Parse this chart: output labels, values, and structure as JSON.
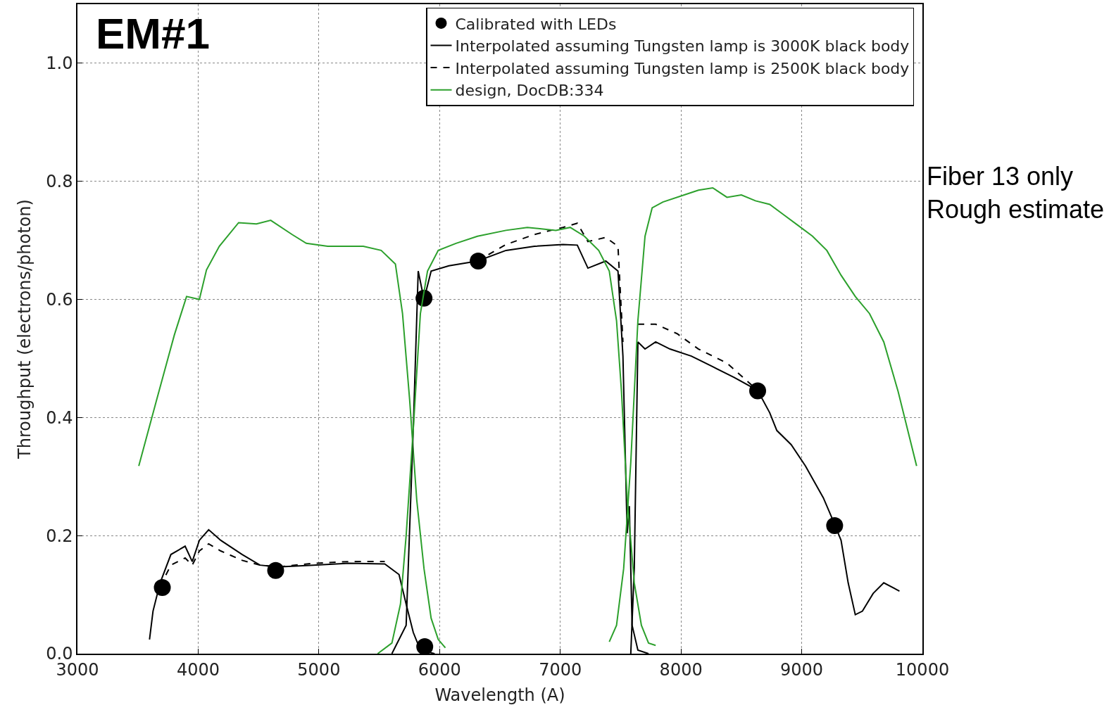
{
  "chart_data": {
    "type": "line",
    "xlabel": "Wavelength (A)",
    "ylabel": "Throughput (electrons/photon)",
    "xlim": [
      3000,
      10000
    ],
    "ylim": [
      0,
      1.1
    ],
    "xticks": [
      3000,
      4000,
      5000,
      6000,
      7000,
      8000,
      9000,
      10000
    ],
    "yticks": [
      {
        "value": 0,
        "label": "0.0"
      },
      {
        "value": 0.2,
        "label": "0.2"
      },
      {
        "value": 0.4,
        "label": "0.4"
      },
      {
        "value": 0.6,
        "label": "0.6"
      },
      {
        "value": 0.8,
        "label": "0.8"
      },
      {
        "value": 1.0,
        "label": "1.0"
      }
    ],
    "grid": true,
    "legend": "top right",
    "annotations": [
      "EM#1",
      "Fiber 13 only\nRough estimate"
    ],
    "series": [
      {
        "name": "Calibrated with LEDs",
        "type": "scatter",
        "marker": "circle",
        "color": "#000000",
        "x": [
          3703,
          4642,
          5871,
          5877,
          6320,
          8635,
          9273
        ],
        "values": [
          0.112,
          0.141,
          0.602,
          0.012,
          0.665,
          0.445,
          0.217
        ]
      },
      {
        "name": "Interpolated assuming Tungsten lamp is 3000K black body",
        "line_style": "solid",
        "color": "#000000",
        "x": [
          3597,
          3626,
          3685,
          3774,
          3892,
          3951,
          4010,
          4087,
          4187,
          4365,
          4512,
          4660,
          4955,
          5250,
          5546,
          5664,
          5723,
          5782,
          5841,
          5959
        ],
        "values": [
          0.024,
          0.072,
          0.12,
          0.168,
          0.182,
          0.156,
          0.192,
          0.21,
          0.192,
          0.168,
          0.15,
          0.147,
          0.15,
          0.153,
          0.152,
          0.134,
          0.084,
          0.036,
          0.006,
          0
        ]
      },
      {
        "name": "Interpolated assuming Tungsten lamp is 2500K black body",
        "line_style": "dashed",
        "color": "#000000",
        "x": [
          3685,
          3774,
          3892,
          3951,
          4010,
          4087,
          4187,
          4365,
          4512,
          4660,
          4955,
          5250,
          5546
        ],
        "values": [
          0.114,
          0.15,
          0.162,
          0.15,
          0.174,
          0.186,
          0.174,
          0.158,
          0.15,
          0.147,
          0.153,
          0.156,
          0.156
        ]
      },
      {
        "name": "design, DocDB:334",
        "line_style": "solid",
        "color": "#2ca02c",
        "x": [
          3508,
          3656,
          3803,
          3904,
          4010,
          4069,
          4175,
          4335,
          4483,
          4601,
          4778,
          4896,
          5073,
          5368,
          5516,
          5634,
          5693,
          5752,
          5811,
          5871,
          5930,
          5989,
          6048
        ],
        "values": [
          0.318,
          0.43,
          0.54,
          0.605,
          0.6,
          0.65,
          0.69,
          0.73,
          0.728,
          0.734,
          0.71,
          0.695,
          0.69,
          0.69,
          0.683,
          0.66,
          0.576,
          0.43,
          0.26,
          0.144,
          0.06,
          0.024,
          0.01
        ]
      },
      {
        "line_style": "solid",
        "color": "#000000",
        "x": [
          5605,
          5723,
          5782,
          5823,
          5871,
          5930,
          6077,
          6314,
          6550,
          6786,
          7022,
          7141,
          7229,
          7377,
          7478,
          7519,
          7554,
          7572,
          7595,
          7643,
          7731
        ],
        "values": [
          0,
          0.048,
          0.38,
          0.648,
          0.6,
          0.648,
          0.657,
          0.665,
          0.683,
          0.69,
          0.693,
          0.692,
          0.653,
          0.665,
          0.648,
          0.504,
          0.204,
          0.25,
          0.048,
          0.006,
          0
        ]
      },
      {
        "line_style": "dashed",
        "color": "#000000",
        "x": [
          6314,
          6550,
          6786,
          7022,
          7141,
          7229,
          7377,
          7478,
          7519
        ],
        "values": [
          0.665,
          0.693,
          0.71,
          0.722,
          0.729,
          0.698,
          0.705,
          0.69,
          0.528
        ]
      },
      {
        "line_style": "solid",
        "color": "#000000",
        "x": [
          7584,
          7613,
          7643,
          7702,
          7790,
          7909,
          8086,
          8263,
          8440,
          8635,
          8735,
          8794,
          8913,
          9031,
          9179,
          9267,
          9326,
          9385,
          9444,
          9503,
          9592,
          9680,
          9810
        ],
        "values": [
          0,
          0.144,
          0.528,
          0.516,
          0.528,
          0.516,
          0.504,
          0.486,
          0.468,
          0.446,
          0.408,
          0.378,
          0.354,
          0.318,
          0.264,
          0.222,
          0.192,
          0.12,
          0.066,
          0.072,
          0.102,
          0.12,
          0.106
        ]
      },
      {
        "line_style": "dashed",
        "color": "#000000",
        "x": [
          7643,
          7790,
          7968,
          8145,
          8381,
          8635
        ],
        "values": [
          0.558,
          0.558,
          0.542,
          0.516,
          0.492,
          0.446
        ]
      },
      {
        "line_style": "solid",
        "color": "#2ca02c",
        "x": [
          5487,
          5605,
          5676,
          5723,
          5782,
          5841,
          5900,
          5989,
          6136,
          6314,
          6550,
          6727,
          6963,
          7082,
          7200,
          7318,
          7406,
          7466,
          7507,
          7554,
          7613,
          7672,
          7731,
          7790
        ],
        "values": [
          0,
          0.018,
          0.084,
          0.2,
          0.38,
          0.576,
          0.648,
          0.683,
          0.695,
          0.707,
          0.717,
          0.722,
          0.717,
          0.722,
          0.707,
          0.683,
          0.648,
          0.564,
          0.444,
          0.264,
          0.12,
          0.048,
          0.018,
          0.014
        ]
      },
      {
        "line_style": "solid",
        "color": "#2ca02c",
        "x": [
          7406,
          7466,
          7525,
          7584,
          7643,
          7702,
          7761,
          7850,
          8027,
          8145,
          8263,
          8381,
          8500,
          8617,
          8735,
          8853,
          8972,
          9090,
          9208,
          9326,
          9444,
          9562,
          9680,
          9799,
          9952
        ],
        "values": [
          0.02,
          0.048,
          0.144,
          0.324,
          0.564,
          0.707,
          0.755,
          0.765,
          0.777,
          0.785,
          0.789,
          0.773,
          0.777,
          0.767,
          0.761,
          0.743,
          0.725,
          0.707,
          0.683,
          0.641,
          0.605,
          0.576,
          0.528,
          0.444,
          0.318
        ]
      }
    ]
  }
}
